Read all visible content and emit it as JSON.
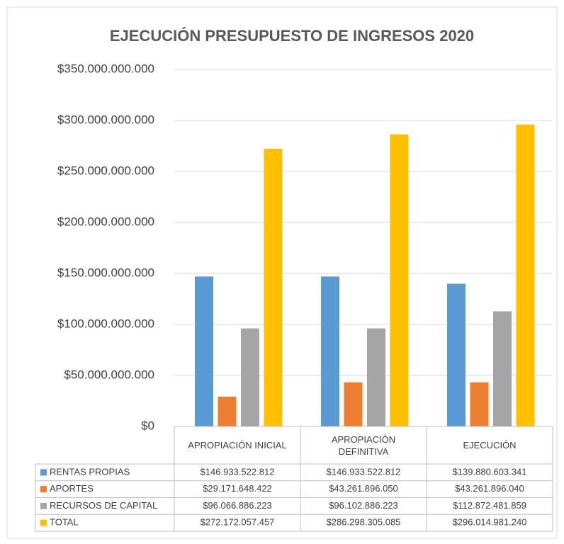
{
  "chart_data": {
    "type": "bar",
    "title": "EJECUCIÓN PRESUPUESTO DE INGRESOS 2020",
    "categories": [
      "APROPIACIÓN INICIAL",
      "APROPIACIÓN DEFINITIVA",
      "EJECUCIÓN"
    ],
    "series": [
      {
        "name": "RENTAS PROPIAS",
        "color": "#5b9bd5",
        "values": [
          146933522812,
          146933522812,
          139880603341
        ],
        "value_labels": [
          "$146.933.522.812",
          "$146.933.522.812",
          "$139.880.603.341"
        ]
      },
      {
        "name": "APORTES",
        "color": "#ed7d31",
        "values": [
          29171648422,
          43261896050,
          43261896040
        ],
        "value_labels": [
          "$29.171.648.422",
          "$43.261.896.050",
          "$43.261.896.040"
        ]
      },
      {
        "name": "RECURSOS DE CAPITAL",
        "color": "#a5a5a5",
        "values": [
          96066886223,
          96102886223,
          112872481859
        ],
        "value_labels": [
          "$96.066.886.223",
          "$96.102.886.223",
          "$112.872.481.859"
        ]
      },
      {
        "name": "TOTAL",
        "color": "#ffc000",
        "values": [
          272172057457,
          286298305085,
          296014981240
        ],
        "value_labels": [
          "$272.172.057.457",
          "$286.298.305.085",
          "$296.014.981.240"
        ]
      }
    ],
    "ylim": [
      0,
      350000000000
    ],
    "yticks": [
      {
        "value": 0,
        "label": "$0"
      },
      {
        "value": 50000000000,
        "label": "$50.000.000.000"
      },
      {
        "value": 100000000000,
        "label": "$100.000.000.000"
      },
      {
        "value": 150000000000,
        "label": "$150.000.000.000"
      },
      {
        "value": 200000000000,
        "label": "$200.000.000.000"
      },
      {
        "value": 250000000000,
        "label": "$250.000.000.000"
      },
      {
        "value": 300000000000,
        "label": "$300.000.000.000"
      },
      {
        "value": 350000000000,
        "label": "$350.000.000.000"
      }
    ],
    "grid": true
  }
}
